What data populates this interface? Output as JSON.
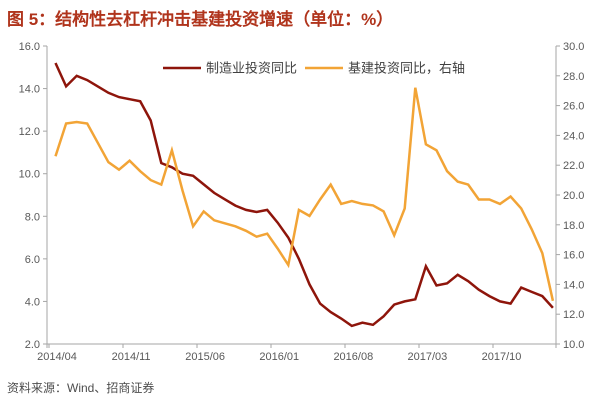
{
  "title": "图 5：结构性去杠杆冲击基建投资增速（单位：%）",
  "source": "资料来源：Wind、招商证券",
  "colors": {
    "title": "#b0341c",
    "manufacturing_line": "#8e150b",
    "infrastructure_line": "#f2a436",
    "axis": "#a6a6a6",
    "tick_label": "#595959",
    "legend_text": "#404040",
    "source_text": "#4d4d4d"
  },
  "legend": {
    "items": [
      {
        "label": "制造业投资同比",
        "color": "#8e150b"
      },
      {
        "label": "基建投资同比，右轴",
        "color": "#f2a436"
      }
    ]
  },
  "chart_data": {
    "type": "line",
    "title": "结构性去杠杆冲击基建投资增速（单位：%）",
    "x": [
      "2014/04",
      "2014/05",
      "2014/06",
      "2014/07",
      "2014/08",
      "2014/09",
      "2014/10",
      "2014/11",
      "2014/12",
      "2015/01",
      "2015/02",
      "2015/03",
      "2015/04",
      "2015/05",
      "2015/06",
      "2015/07",
      "2015/08",
      "2015/09",
      "2015/10",
      "2015/11",
      "2015/12",
      "2016/01",
      "2016/02",
      "2016/03",
      "2016/04",
      "2016/05",
      "2016/06",
      "2016/07",
      "2016/08",
      "2016/09",
      "2016/10",
      "2016/11",
      "2016/12",
      "2017/01",
      "2017/02",
      "2017/03",
      "2017/04",
      "2017/05",
      "2017/06",
      "2017/07",
      "2017/08",
      "2017/09",
      "2017/10",
      "2017/11",
      "2017/12",
      "2018/01",
      "2018/02",
      "2018/03"
    ],
    "x_tick_labels": [
      "2014/04",
      "2014/11",
      "2015/06",
      "2016/01",
      "2016/08",
      "2017/03",
      "2017/10"
    ],
    "series": [
      {
        "name": "制造业投资同比",
        "axis": "left",
        "values": [
          15.2,
          14.1,
          14.6,
          14.4,
          14.1,
          13.8,
          13.6,
          13.5,
          13.4,
          12.5,
          10.5,
          10.3,
          10.0,
          9.9,
          9.5,
          9.1,
          8.8,
          8.5,
          8.3,
          8.2,
          8.3,
          7.7,
          7.0,
          6.0,
          4.8,
          3.9,
          3.5,
          3.2,
          2.85,
          3.0,
          2.9,
          3.3,
          3.85,
          4.0,
          4.1,
          5.65,
          4.75,
          4.85,
          5.25,
          4.95,
          4.55,
          4.25,
          4.0,
          3.9,
          4.65,
          4.45,
          4.25,
          3.7
        ]
      },
      {
        "name": "基建投资同比，右轴",
        "axis": "right",
        "values": [
          22.6,
          24.8,
          24.9,
          24.8,
          23.5,
          22.2,
          21.7,
          22.3,
          21.6,
          21.0,
          20.7,
          23.0,
          20.3,
          17.9,
          18.9,
          18.3,
          18.1,
          17.9,
          17.6,
          17.2,
          17.4,
          16.4,
          15.3,
          19.0,
          18.6,
          19.7,
          20.7,
          19.4,
          19.6,
          19.4,
          19.3,
          18.9,
          17.3,
          19.1,
          27.2,
          23.4,
          23.0,
          21.6,
          20.9,
          20.7,
          19.7,
          19.7,
          19.4,
          19.9,
          19.1,
          17.7,
          16.1,
          12.9
        ]
      }
    ],
    "left_axis": {
      "min": 2,
      "max": 16,
      "step": 2
    },
    "right_axis": {
      "min": 10,
      "max": 30,
      "step": 2
    },
    "legend_position": "top-center",
    "grid": false
  }
}
